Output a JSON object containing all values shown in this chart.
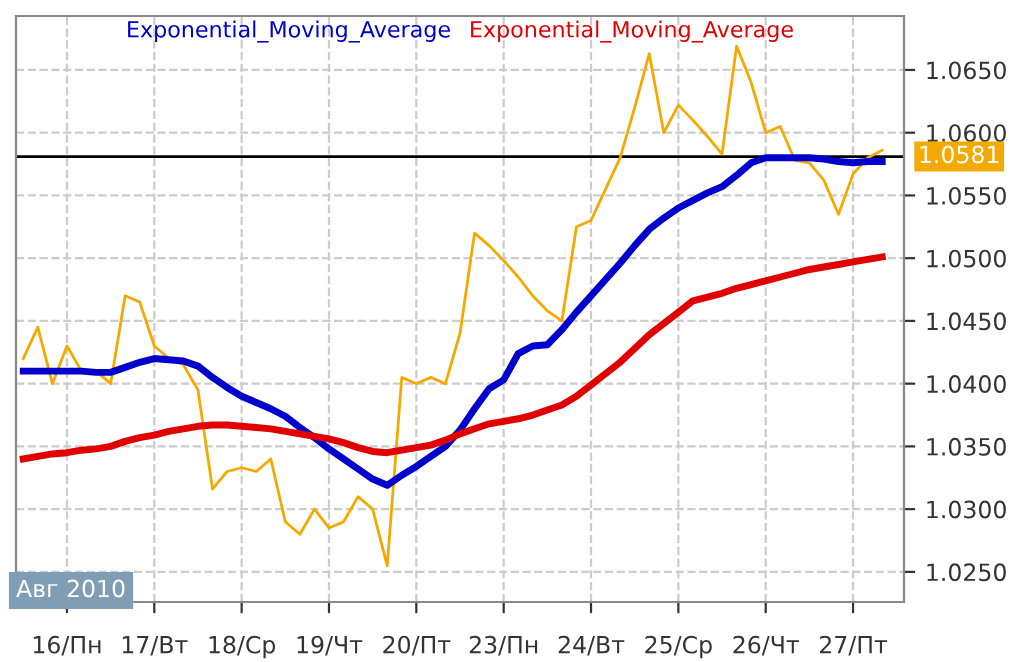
{
  "chart_data": {
    "type": "line",
    "categories": [
      null,
      null,
      null,
      "16/Пн",
      null,
      null,
      null,
      null,
      null,
      "17/Вт",
      null,
      null,
      null,
      null,
      null,
      "18/Ср",
      null,
      null,
      null,
      null,
      null,
      "19/Чт",
      null,
      null,
      null,
      null,
      null,
      "20/Пт",
      null,
      null,
      null,
      null,
      null,
      "23/Пн",
      null,
      null,
      null,
      null,
      null,
      "24/Вт",
      null,
      null,
      null,
      null,
      null,
      "25/Ср",
      null,
      null,
      null,
      null,
      null,
      "26/Чт",
      null,
      null,
      null,
      null,
      null,
      "27/Пт",
      null,
      null,
      null
    ],
    "series": [
      {
        "color": "#f5a900",
        "values": [
          1.042,
          1.0445,
          1.04,
          1.043,
          1.041,
          1.041,
          1.04,
          1.047,
          1.0465,
          1.043,
          1.042,
          1.0415,
          1.0395,
          1.0316,
          1.033,
          1.0333,
          1.033,
          1.034,
          1.029,
          1.028,
          1.03,
          1.0285,
          1.029,
          1.031,
          1.03,
          1.0255,
          1.0405,
          1.04,
          1.0405,
          1.04,
          1.044,
          1.052,
          1.051,
          1.0498,
          1.0485,
          1.047,
          1.0458,
          1.045,
          1.0525,
          1.053,
          1.0555,
          1.058,
          1.062,
          1.0663,
          1.06,
          1.0622,
          1.061,
          1.0597,
          1.0583,
          1.0669,
          1.064,
          1.06,
          1.0605,
          1.0578,
          1.0576,
          1.0562,
          1.0535,
          1.0567,
          1.058,
          1.0586,
          null
        ]
      },
      {
        "name": "Exponential_Moving_Average",
        "color": "#0000cc",
        "values": [
          1.041,
          1.041,
          1.041,
          1.041,
          1.041,
          1.0409,
          1.0409,
          1.0413,
          1.0417,
          1.042,
          1.0419,
          1.0418,
          1.0414,
          1.0405,
          1.0397,
          1.039,
          1.0385,
          1.038,
          1.0374,
          1.0365,
          1.0357,
          1.0348,
          1.034,
          1.0332,
          1.0324,
          1.0319,
          1.0327,
          1.0334,
          1.0342,
          1.035,
          1.0363,
          1.038,
          1.0396,
          1.0403,
          1.0424,
          1.043,
          1.0431,
          1.0443,
          1.0457,
          1.047,
          1.0483,
          1.0496,
          1.051,
          1.0523,
          1.0532,
          1.054,
          1.0546,
          1.0552,
          1.0557,
          1.0566,
          1.0576,
          1.058,
          1.058,
          1.058,
          1.058,
          1.0579,
          1.0577,
          1.0576,
          1.0577,
          1.0577,
          null
        ]
      },
      {
        "name": "Exponential_Moving_Average",
        "color": "#e00000",
        "values": [
          1.034,
          1.0342,
          1.0344,
          1.0345,
          1.0347,
          1.0348,
          1.035,
          1.0354,
          1.0357,
          1.0359,
          1.0362,
          1.0364,
          1.0366,
          1.0367,
          1.0367,
          1.0366,
          1.0365,
          1.0364,
          1.0362,
          1.036,
          1.0358,
          1.0356,
          1.0353,
          1.0349,
          1.0346,
          1.0345,
          1.0347,
          1.0349,
          1.0351,
          1.0355,
          1.036,
          1.0364,
          1.0368,
          1.037,
          1.0372,
          1.0375,
          1.0379,
          1.0383,
          1.039,
          1.0399,
          1.0408,
          1.0417,
          1.0428,
          1.0439,
          1.0448,
          1.0457,
          1.0466,
          1.0469,
          1.0472,
          1.0476,
          1.0479,
          1.0482,
          1.0485,
          1.0488,
          1.0491,
          1.0493,
          1.0495,
          1.0497,
          1.0499,
          1.0501,
          null
        ]
      }
    ],
    "ylim": [
      1.0226,
      1.0693
    ],
    "yticks": [
      {
        "value": 1.025,
        "label": "1.0250"
      },
      {
        "value": 1.03,
        "label": "1.0300"
      },
      {
        "value": 1.035,
        "label": "1.0350"
      },
      {
        "value": 1.04,
        "label": "1.0400"
      },
      {
        "value": 1.045,
        "label": "1.0450"
      },
      {
        "value": 1.05,
        "label": "1.0500"
      },
      {
        "value": 1.055,
        "label": "1.0550"
      },
      {
        "value": 1.06,
        "label": "1.0600"
      },
      {
        "value": 1.065,
        "label": "1.0650"
      }
    ],
    "ref_lines": [
      {
        "axis": "y",
        "value": 1.0581,
        "label": "1.0581",
        "color": "#000000"
      }
    ],
    "annotations": [
      "Авг 2010"
    ],
    "grid": true,
    "legend": "top"
  }
}
